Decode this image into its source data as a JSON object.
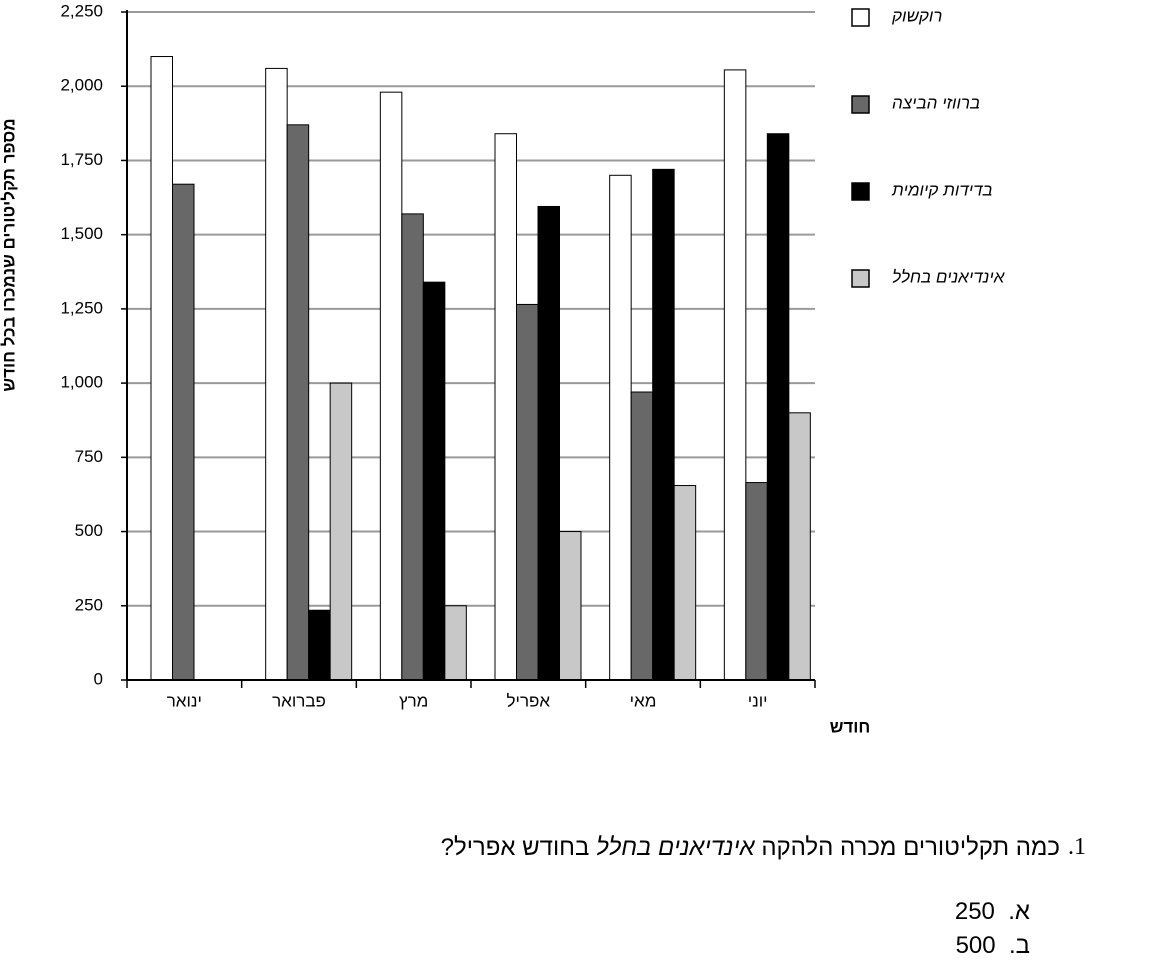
{
  "chart_data": {
    "type": "bar",
    "y_label": "מספר תקליטורים שנמכרו בכל חודש",
    "x_label": "חודש",
    "categories": [
      "ינואר",
      "פברואר",
      "מרץ",
      "אפריל",
      "מאי",
      "יוני"
    ],
    "series": [
      {
        "name": "רוקשוק",
        "color": "#ffffff",
        "values": [
          2100,
          2060,
          1980,
          1840,
          1700,
          2055
        ]
      },
      {
        "name": "ברווזי הביצה",
        "color": "#686868",
        "values": [
          1670,
          1870,
          1570,
          1265,
          970,
          665
        ]
      },
      {
        "name": "בדידות קיומית",
        "color": "#000000",
        "values": [
          0,
          235,
          1340,
          1595,
          1720,
          1840
        ]
      },
      {
        "name": "אינדיאנים בחלל",
        "color": "#c8c8c8",
        "values": [
          0,
          1000,
          250,
          500,
          655,
          900
        ]
      }
    ],
    "ylim": [
      0,
      2250
    ],
    "yticks": [
      0,
      250,
      500,
      750,
      {
        "value": 1000,
        "label": "1,000"
      },
      {
        "value": 1250,
        "label": "1,250"
      },
      {
        "value": 1500,
        "label": "1,500"
      },
      {
        "value": 1750,
        "label": "1,750"
      },
      {
        "value": 2000,
        "label": "2,000"
      },
      {
        "value": 2250,
        "label": "2,250"
      }
    ],
    "grid": true
  },
  "question": {
    "number": "1.",
    "text_before": "כמה תקליטורים מכרה הלהקה",
    "text_italic": "אינדיאנים בחלל",
    "text_after": "בחודש אפריל?",
    "options": [
      {
        "letter": "א.",
        "value": 250
      },
      {
        "letter": "ב.",
        "value": 500
      }
    ]
  }
}
